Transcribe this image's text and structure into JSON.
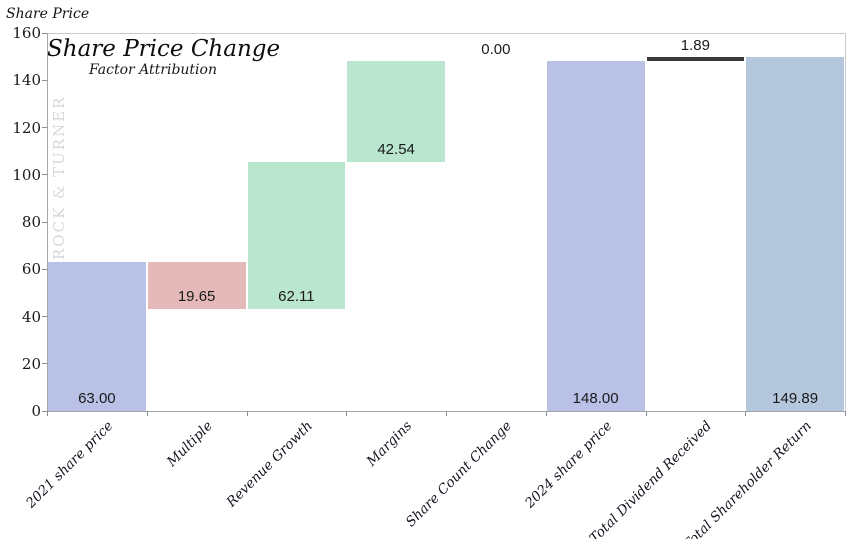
{
  "chart_data": {
    "type": "waterfall-bar",
    "title": "Share Price Change",
    "subtitle": "Factor Attribution",
    "ylabel": "Share Price",
    "watermark": "ROCK & TURNER",
    "ylim": [
      0,
      160
    ],
    "yticks": [
      0,
      20,
      40,
      60,
      80,
      100,
      120,
      140,
      160
    ],
    "grid": false,
    "legend": false,
    "categories": [
      "2021 share price",
      "Multiple",
      "Revenue Growth",
      "Margins",
      "Share Count Change",
      "2024 share price",
      "Total Dividend Received",
      "Total Shareholder Return"
    ],
    "points": [
      {
        "category": "2021 share price",
        "start": 0,
        "end": 63,
        "value_label": "63.00",
        "color_key": "base",
        "label_pos": "inside-bottom"
      },
      {
        "category": "Multiple",
        "start": 63,
        "end": 43.35,
        "value_label": "19.65",
        "color_key": "decrease",
        "label_pos": "inside-bottom"
      },
      {
        "category": "Revenue Growth",
        "start": 43.35,
        "end": 105.46,
        "value_label": "62.11",
        "color_key": "increase",
        "label_pos": "inside-bottom"
      },
      {
        "category": "Margins",
        "start": 105.46,
        "end": 148,
        "value_label": "42.54",
        "color_key": "increase",
        "label_pos": "inside-bottom"
      },
      {
        "category": "Share Count Change",
        "start": 148,
        "end": 148,
        "value_label": "0.00",
        "color_key": "none",
        "label_pos": "above"
      },
      {
        "category": "2024 share price",
        "start": 0,
        "end": 148,
        "value_label": "148.00",
        "color_key": "base",
        "label_pos": "inside-bottom"
      },
      {
        "category": "Total Dividend Received",
        "start": 148,
        "end": 149.89,
        "value_label": "1.89",
        "color_key": "dividend",
        "label_pos": "above"
      },
      {
        "category": "Total Shareholder Return",
        "start": 0,
        "end": 149.89,
        "value_label": "149.89",
        "color_key": "total",
        "label_pos": "inside-bottom"
      }
    ],
    "colors": {
      "base": "#b9c2e6",
      "decrease": "#e5b9ba",
      "increase": "#bae5cf",
      "dividend": "#3a3a3a",
      "total": "#b4c7dc"
    }
  }
}
